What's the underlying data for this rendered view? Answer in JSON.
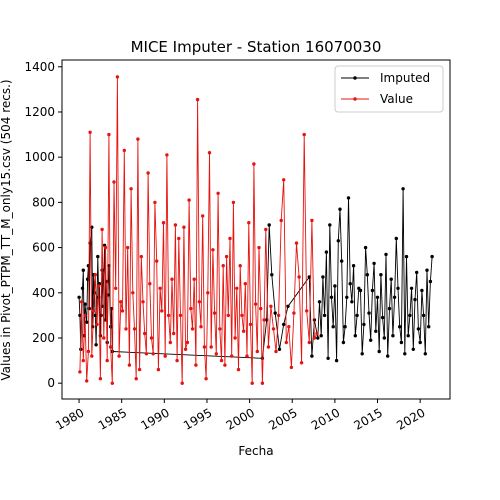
{
  "chart_data": {
    "type": "line",
    "title": "MICE Imputer - Station 16070030",
    "xlabel": "Fecha",
    "ylabel": "Values in Pivot_PTPM_TT_M_only15.csv (504 recs.)",
    "xlim": [
      1978.0,
      2023.5
    ],
    "ylim": [
      -70,
      1430
    ],
    "x_ticks": [
      1980,
      1985,
      1990,
      1995,
      2000,
      2005,
      2010,
      2015,
      2020
    ],
    "y_ticks": [
      0,
      200,
      400,
      600,
      800,
      1000,
      1200,
      1400
    ],
    "legend_position": "top-right",
    "grid": false,
    "series": [
      {
        "name": "Imputed",
        "color": "#000000",
        "x": [
          1980.0,
          1980.1,
          1980.2,
          1980.4,
          1980.5,
          1980.6,
          1980.7,
          1980.9,
          1981.0,
          1981.1,
          1981.2,
          1981.3,
          1981.5,
          1981.6,
          1981.7,
          1981.8,
          1981.9,
          1982.0,
          1982.2,
          1982.3,
          1982.4,
          1982.5,
          1982.6,
          1982.7,
          1982.8,
          1983.0,
          1983.1,
          1983.2,
          1983.3,
          1983.4,
          1983.5,
          1983.7,
          1983.8,
          1983.9,
          2001.5,
          2002.0,
          2002.3,
          2002.6,
          2003.0,
          2003.5,
          2004.0,
          2004.5,
          2007.0,
          2007.3,
          2007.6,
          2008.0,
          2008.2,
          2008.4,
          2008.6,
          2008.8,
          2009.0,
          2009.2,
          2009.4,
          2009.6,
          2009.8,
          2010.0,
          2010.2,
          2010.4,
          2010.6,
          2010.8,
          2011.0,
          2011.2,
          2011.4,
          2011.6,
          2011.8,
          2012.0,
          2012.2,
          2012.4,
          2012.6,
          2012.8,
          2013.0,
          2013.2,
          2013.4,
          2013.6,
          2013.8,
          2014.0,
          2014.2,
          2014.4,
          2014.6,
          2014.8,
          2015.0,
          2015.2,
          2015.4,
          2015.6,
          2015.8,
          2016.0,
          2016.2,
          2016.4,
          2016.6,
          2016.8,
          2017.0,
          2017.2,
          2017.4,
          2017.6,
          2017.8,
          2018.0,
          2018.2,
          2018.4,
          2018.6,
          2018.8,
          2019.0,
          2019.2,
          2019.4,
          2019.6,
          2019.8,
          2020.0,
          2020.2,
          2020.4,
          2020.6,
          2020.8,
          2021.0,
          2021.2,
          2021.4
        ],
        "values": [
          380,
          300,
          150,
          420,
          500,
          210,
          350,
          270,
          460,
          520,
          330,
          620,
          690,
          250,
          480,
          400,
          300,
          170,
          560,
          380,
          440,
          210,
          300,
          500,
          340,
          610,
          280,
          450,
          180,
          390,
          520,
          250,
          330,
          140,
          110,
          280,
          700,
          480,
          310,
          150,
          260,
          340,
          470,
          120,
          280,
          200,
          360,
          210,
          470,
          300,
          580,
          110,
          700,
          380,
          250,
          430,
          100,
          630,
          770,
          540,
          180,
          250,
          380,
          820,
          440,
          360,
          520,
          210,
          300,
          420,
          410,
          130,
          260,
          600,
          480,
          310,
          190,
          410,
          530,
          230,
          380,
          140,
          480,
          290,
          200,
          570,
          120,
          330,
          460,
          210,
          380,
          640,
          420,
          250,
          180,
          860,
          130,
          560,
          210,
          300,
          420,
          150,
          370,
          490,
          240,
          180,
          410,
          300,
          130,
          500,
          250,
          450,
          560
        ]
      },
      {
        "name": "Value",
        "color": "#e6140f",
        "x": [
          1980.1,
          1980.3,
          1980.5,
          1980.7,
          1980.9,
          1981.1,
          1981.3,
          1981.5,
          1981.7,
          1981.9,
          1982.1,
          1982.3,
          1982.5,
          1982.7,
          1982.9,
          1983.1,
          1983.3,
          1983.5,
          1983.7,
          1983.9,
          1984.1,
          1984.3,
          1984.5,
          1984.7,
          1984.9,
          1985.1,
          1985.3,
          1985.5,
          1985.7,
          1985.9,
          1986.1,
          1986.3,
          1986.5,
          1986.7,
          1986.9,
          1987.1,
          1987.3,
          1987.5,
          1987.7,
          1987.9,
          1988.1,
          1988.3,
          1988.5,
          1988.7,
          1988.9,
          1989.1,
          1989.3,
          1989.5,
          1989.7,
          1989.9,
          1990.1,
          1990.3,
          1990.5,
          1990.7,
          1990.9,
          1991.1,
          1991.3,
          1991.5,
          1991.7,
          1991.9,
          1992.1,
          1992.3,
          1992.5,
          1992.7,
          1992.9,
          1993.1,
          1993.3,
          1993.5,
          1993.7,
          1993.9,
          1994.1,
          1994.3,
          1994.5,
          1994.7,
          1994.9,
          1995.1,
          1995.3,
          1995.5,
          1995.7,
          1995.9,
          1996.1,
          1996.3,
          1996.5,
          1996.7,
          1996.9,
          1997.1,
          1997.3,
          1997.5,
          1997.7,
          1997.9,
          1998.1,
          1998.3,
          1998.5,
          1998.7,
          1998.9,
          1999.1,
          1999.3,
          1999.5,
          1999.7,
          1999.9,
          2000.1,
          2000.3,
          2000.5,
          2000.7,
          2000.9,
          2001.1,
          2001.3,
          2001.5,
          2001.7,
          2001.9,
          2002.2,
          2002.5,
          2002.8,
          2003.1,
          2003.4,
          2003.7,
          2004.0,
          2004.3,
          2004.6,
          2004.9,
          2005.2,
          2005.5,
          2005.8,
          2006.1,
          2006.4,
          2006.7,
          2007.0,
          2007.3,
          2007.6,
          2007.9
        ],
        "values": [
          50,
          360,
          100,
          300,
          10,
          140,
          1110,
          120,
          320,
          480,
          260,
          430,
          20,
          680,
          200,
          600,
          100,
          1100,
          160,
          0,
          890,
          420,
          1355,
          120,
          360,
          320,
          1030,
          240,
          600,
          80,
          860,
          400,
          240,
          20,
          1080,
          60,
          560,
          360,
          220,
          130,
          930,
          440,
          200,
          130,
          800,
          540,
          60,
          420,
          320,
          710,
          120,
          1010,
          300,
          180,
          460,
          220,
          700,
          100,
          640,
          300,
          0,
          690,
          150,
          180,
          810,
          330,
          240,
          460,
          80,
          1255,
          360,
          250,
          740,
          160,
          20,
          400,
          1020,
          160,
          590,
          310,
          130,
          840,
          240,
          100,
          520,
          80,
          560,
          300,
          640,
          120,
          800,
          200,
          420,
          60,
          520,
          300,
          230,
          440,
          120,
          710,
          260,
          0,
          970,
          350,
          140,
          600,
          330,
          0,
          280,
          680,
          160,
          340,
          240,
          140,
          300,
          720,
          900,
          180,
          250,
          70,
          310,
          620,
          470,
          90,
          1100,
          320,
          180,
          720,
          200,
          220
        ]
      }
    ]
  }
}
